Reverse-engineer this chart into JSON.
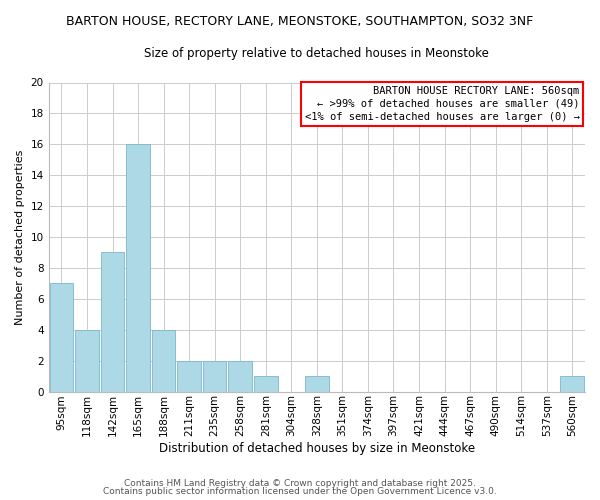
{
  "title": "BARTON HOUSE, RECTORY LANE, MEONSTOKE, SOUTHAMPTON, SO32 3NF",
  "subtitle": "Size of property relative to detached houses in Meonstoke",
  "xlabel": "Distribution of detached houses by size in Meonstoke",
  "ylabel": "Number of detached properties",
  "bar_color": "#add8e6",
  "bar_edge_color": "#7ab8cc",
  "categories": [
    "95sqm",
    "118sqm",
    "142sqm",
    "165sqm",
    "188sqm",
    "211sqm",
    "235sqm",
    "258sqm",
    "281sqm",
    "304sqm",
    "328sqm",
    "351sqm",
    "374sqm",
    "397sqm",
    "421sqm",
    "444sqm",
    "467sqm",
    "490sqm",
    "514sqm",
    "537sqm",
    "560sqm"
  ],
  "values": [
    7,
    4,
    9,
    16,
    4,
    2,
    2,
    2,
    1,
    0,
    1,
    0,
    0,
    0,
    0,
    0,
    0,
    0,
    0,
    0,
    1
  ],
  "ylim": [
    0,
    20
  ],
  "yticks": [
    0,
    2,
    4,
    6,
    8,
    10,
    12,
    14,
    16,
    18,
    20
  ],
  "legend_title": "BARTON HOUSE RECTORY LANE: 560sqm",
  "legend_line1": "← >99% of detached houses are smaller (49)",
  "legend_line2": "<1% of semi-detached houses are larger (0) →",
  "footer_line1": "Contains HM Land Registry data © Crown copyright and database right 2025.",
  "footer_line2": "Contains public sector information licensed under the Open Government Licence v3.0.",
  "background_color": "#ffffff",
  "grid_color": "#cccccc",
  "title_fontsize": 9,
  "subtitle_fontsize": 8.5,
  "xlabel_fontsize": 8.5,
  "ylabel_fontsize": 8,
  "tick_fontsize": 7.5,
  "footer_fontsize": 6.5,
  "legend_fontsize": 7.5
}
